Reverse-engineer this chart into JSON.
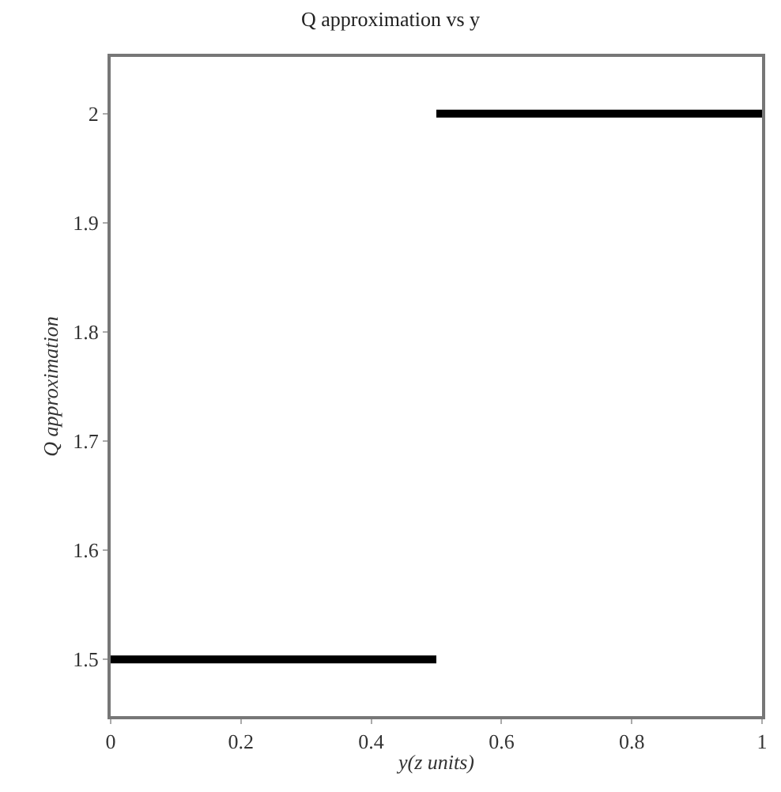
{
  "chart_data": {
    "type": "line",
    "title": "Q approximation vs y",
    "xlabel": "y(z units)",
    "ylabel": "Q approximation",
    "series": [
      {
        "color": "#000000",
        "x": [
          0,
          0.5
        ],
        "values": [
          1.5,
          1.5
        ]
      },
      {
        "color": "#000000",
        "x": [
          0.5,
          1
        ],
        "values": [
          2,
          2
        ]
      }
    ],
    "xlim": [
      0,
      1
    ],
    "ylim": [
      1.448,
      2.052
    ],
    "xticks": [
      0,
      0.2,
      0.4,
      0.6,
      0.8,
      1
    ],
    "yticks": [
      1.5,
      1.6,
      1.7,
      1.8,
      1.9,
      2
    ],
    "grid": false,
    "legend": false,
    "marker": "none",
    "line_style": "solid"
  }
}
